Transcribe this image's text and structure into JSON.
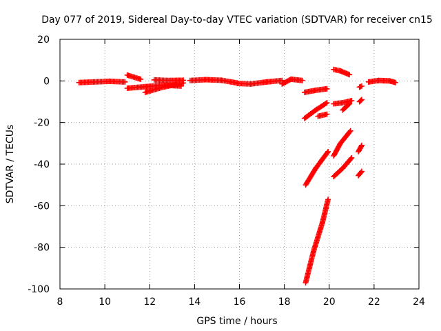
{
  "chart_data": {
    "type": "scatter",
    "title": "Day 077 of 2019, Sidereal Day-to-day VTEC variation (SDTVAR) for receiver cn15",
    "xlabel": "GPS time / hours",
    "ylabel": "SDTVAR / TECUs",
    "xlim": [
      8,
      24
    ],
    "ylim": [
      -100,
      20
    ],
    "x_ticks": [
      "8",
      "10",
      "12",
      "14",
      "16",
      "18",
      "20",
      "22",
      "24"
    ],
    "y_ticks": [
      "20",
      "0",
      "-20",
      "-40",
      "-60",
      "-80",
      "-100"
    ],
    "x_tick_values": [
      8,
      10,
      12,
      14,
      16,
      18,
      20,
      22,
      24
    ],
    "y_tick_values": [
      20,
      0,
      -20,
      -40,
      -60,
      -80,
      -100
    ],
    "grid": true,
    "marker": "plus",
    "color": "#ff0000",
    "segments": [
      {
        "x": [
          8.85,
          9.5,
          10.2,
          10.9
        ],
        "y": [
          -0.8,
          -0.5,
          -0.2,
          -0.5
        ]
      },
      {
        "x": [
          11.0,
          11.6
        ],
        "y": [
          2.8,
          0.8
        ]
      },
      {
        "x": [
          11.0,
          11.8,
          12.6,
          13.4
        ],
        "y": [
          -3.5,
          -2.8,
          -2.0,
          -2.5
        ]
      },
      {
        "x": [
          11.8,
          12.6,
          13.5
        ],
        "y": [
          -5.5,
          -3.0,
          -1.0
        ]
      },
      {
        "x": [
          12.2,
          12.8,
          13.5
        ],
        "y": [
          0.5,
          0.2,
          0.3
        ]
      },
      {
        "x": [
          13.8,
          14.5,
          15.2,
          15.9
        ],
        "y": [
          0.2,
          0.6,
          0.3,
          -1.0
        ]
      },
      {
        "x": [
          15.9,
          16.5,
          17.2,
          17.9
        ],
        "y": [
          -1.2,
          -1.5,
          -0.5,
          0.2
        ]
      },
      {
        "x": [
          17.9,
          18.3,
          18.8
        ],
        "y": [
          -1.5,
          0.8,
          0.2
        ]
      },
      {
        "x": [
          18.9,
          19.4,
          19.9
        ],
        "y": [
          -5.5,
          -4.5,
          -3.8
        ]
      },
      {
        "x": [
          18.9,
          19.4,
          19.9
        ],
        "y": [
          -18.0,
          -14.0,
          -10.5
        ]
      },
      {
        "x": [
          19.5,
          19.9
        ],
        "y": [
          -17.0,
          -16.0
        ]
      },
      {
        "x": [
          18.95,
          19.3,
          19.7,
          19.95
        ],
        "y": [
          -97.0,
          -82.0,
          -68.0,
          -57.0
        ]
      },
      {
        "x": [
          18.95,
          19.4,
          19.95
        ],
        "y": [
          -50.0,
          -42.0,
          -34.0
        ]
      },
      {
        "x": [
          20.2,
          20.5,
          20.9
        ],
        "y": [
          5.5,
          4.8,
          3.0
        ]
      },
      {
        "x": [
          20.2,
          20.6,
          21.0
        ],
        "y": [
          -11.0,
          -10.5,
          -9.5
        ]
      },
      {
        "x": [
          20.6,
          20.9
        ],
        "y": [
          -14.0,
          -11.0
        ]
      },
      {
        "x": [
          21.35,
          21.45
        ],
        "y": [
          -3.0,
          -2.5
        ]
      },
      {
        "x": [
          21.35,
          21.45
        ],
        "y": [
          -10.0,
          -9.0
        ]
      },
      {
        "x": [
          20.2,
          20.5,
          20.95
        ],
        "y": [
          -36.0,
          -30.0,
          -24.0
        ]
      },
      {
        "x": [
          20.2,
          20.6,
          21.0
        ],
        "y": [
          -46.0,
          -42.0,
          -37.0
        ]
      },
      {
        "x": [
          21.3,
          21.45
        ],
        "y": [
          -34.0,
          -31.0
        ]
      },
      {
        "x": [
          21.3,
          21.45
        ],
        "y": [
          -45.5,
          -43.5
        ]
      },
      {
        "x": [
          21.75,
          22.2,
          22.7,
          22.95
        ],
        "y": [
          -0.5,
          0.2,
          0.0,
          -0.8
        ]
      }
    ]
  }
}
